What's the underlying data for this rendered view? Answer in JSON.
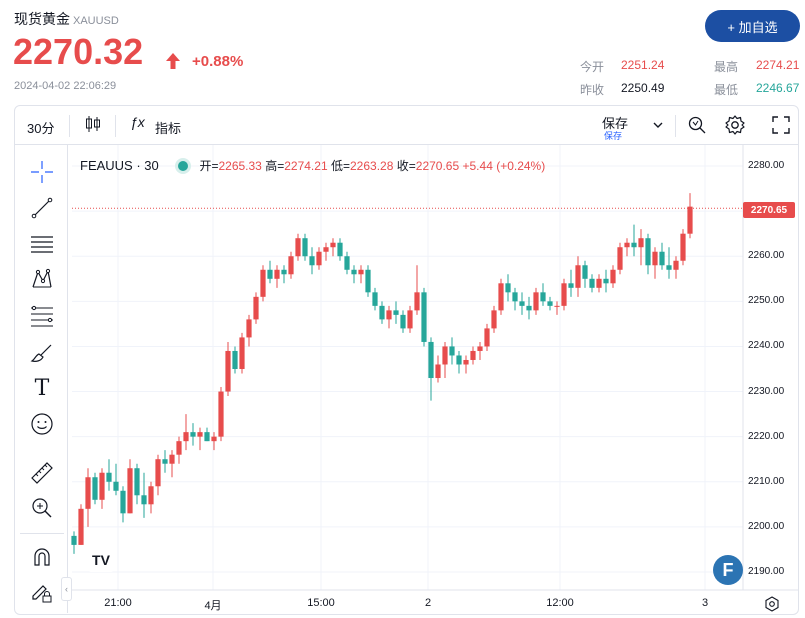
{
  "header": {
    "title": "现货黄金",
    "symbol": "XAUUSD",
    "price": "2270.32",
    "change_pct": "+0.88%",
    "timestamp": "2024-04-02 22:06:29",
    "add_button": "+ 加自选"
  },
  "stats": {
    "open_label": "今开",
    "open_value": "2251.24",
    "high_label": "最高",
    "high_value": "2274.21",
    "prev_label": "昨收",
    "prev_value": "2250.49",
    "low_label": "最低",
    "low_value": "2246.67"
  },
  "toolbar": {
    "interval": "30分",
    "indicators": "指标",
    "save_label": "保存",
    "save_sub": "保存"
  },
  "legend": {
    "symbol": "FEAUUS · 30",
    "open_label": "开",
    "open_value": "2265.33",
    "high_label": "高",
    "high_value": "2274.21",
    "low_label": "低",
    "low_value": "2263.28",
    "close_label": "收",
    "close_value": "2270.65",
    "change": "+5.44 (+0.24%)"
  },
  "colors": {
    "up": "#e74c4c",
    "down": "#26a69a",
    "accent": "#1c4fa3"
  },
  "icons": [
    "crosshair-icon",
    "trendline-icon",
    "horizontal-lines-icon",
    "pattern-icon",
    "fib-icon",
    "brush-icon",
    "text-icon",
    "emoji-icon",
    "ruler-icon",
    "zoom-icon",
    "magnet-icon",
    "lock-pencil-icon"
  ],
  "chart_data": {
    "type": "candlestick",
    "last_price_label": "2270.65",
    "ylim": [
      2186,
      2284
    ],
    "y_ticks": [
      "2280.00",
      "2270.00",
      "2260.00",
      "2250.00",
      "2240.00",
      "2230.00",
      "2220.00",
      "2210.00",
      "2200.00",
      "2190.00"
    ],
    "x_ticks": [
      "21:00",
      "4月",
      "15:00",
      "2",
      "12:00",
      "3"
    ],
    "candles": [
      [
        2198,
        2199,
        2194,
        2196
      ],
      [
        2196,
        2205,
        2196,
        2204
      ],
      [
        2204,
        2213,
        2200,
        2211
      ],
      [
        2211,
        2212,
        2205,
        2206
      ],
      [
        2206,
        2213,
        2204,
        2212
      ],
      [
        2212,
        2215,
        2208,
        2210
      ],
      [
        2210,
        2214,
        2207,
        2208
      ],
      [
        2208,
        2209,
        2201,
        2203
      ],
      [
        2203,
        2215,
        2203,
        2213
      ],
      [
        2213,
        2214,
        2205,
        2207
      ],
      [
        2207,
        2212,
        2202,
        2205
      ],
      [
        2205,
        2210,
        2203,
        2209
      ],
      [
        2209,
        2216,
        2207,
        2215
      ],
      [
        2215,
        2217,
        2212,
        2214
      ],
      [
        2214,
        2217,
        2211,
        2216
      ],
      [
        2216,
        2220,
        2214,
        2219
      ],
      [
        2219,
        2225,
        2217,
        2221
      ],
      [
        2221,
        2223,
        2218,
        2220
      ],
      [
        2220,
        2222,
        2217,
        2221
      ],
      [
        2221,
        2222,
        2219,
        2219
      ],
      [
        2219,
        2221,
        2217,
        2220
      ],
      [
        2220,
        2231,
        2219,
        2230
      ],
      [
        2230,
        2241,
        2229,
        2239
      ],
      [
        2239,
        2240,
        2234,
        2235
      ],
      [
        2235,
        2243,
        2234,
        2242
      ],
      [
        2242,
        2247,
        2240,
        2246
      ],
      [
        2246,
        2252,
        2245,
        2251
      ],
      [
        2251,
        2258,
        2250,
        2257
      ],
      [
        2257,
        2259,
        2254,
        2255
      ],
      [
        2255,
        2258,
        2253,
        2257
      ],
      [
        2257,
        2258,
        2254,
        2256
      ],
      [
        2256,
        2261,
        2255,
        2260
      ],
      [
        2260,
        2265,
        2259,
        2264
      ],
      [
        2264,
        2265,
        2259,
        2260
      ],
      [
        2260,
        2262,
        2256,
        2258
      ],
      [
        2258,
        2262,
        2257,
        2261
      ],
      [
        2261,
        2263,
        2259,
        2262
      ],
      [
        2262,
        2264,
        2260,
        2263
      ],
      [
        2263,
        2264,
        2259,
        2260
      ],
      [
        2260,
        2261,
        2256,
        2257
      ],
      [
        2257,
        2258,
        2254,
        2256
      ],
      [
        2256,
        2258,
        2254,
        2257
      ],
      [
        2257,
        2258,
        2251,
        2252
      ],
      [
        2252,
        2253,
        2248,
        2249
      ],
      [
        2249,
        2250,
        2245,
        2246
      ],
      [
        2246,
        2249,
        2244,
        2248
      ],
      [
        2248,
        2250,
        2245,
        2247
      ],
      [
        2247,
        2248,
        2243,
        2244
      ],
      [
        2244,
        2249,
        2243,
        2248
      ],
      [
        2248,
        2258,
        2247,
        2252
      ],
      [
        2252,
        2253,
        2240,
        2241
      ],
      [
        2241,
        2242,
        2228,
        2233
      ],
      [
        2233,
        2238,
        2232,
        2236
      ],
      [
        2236,
        2241,
        2233,
        2240
      ],
      [
        2240,
        2242,
        2236,
        2238
      ],
      [
        2238,
        2239,
        2234,
        2236
      ],
      [
        2236,
        2238,
        2234,
        2237
      ],
      [
        2237,
        2240,
        2236,
        2239
      ],
      [
        2239,
        2241,
        2237,
        2240
      ],
      [
        2240,
        2245,
        2239,
        2244
      ],
      [
        2244,
        2249,
        2243,
        2248
      ],
      [
        2248,
        2255,
        2247,
        2254
      ],
      [
        2254,
        2256,
        2250,
        2252
      ],
      [
        2252,
        2253,
        2248,
        2250
      ],
      [
        2250,
        2252,
        2247,
        2249
      ],
      [
        2249,
        2251,
        2246,
        2248
      ],
      [
        2248,
        2253,
        2247,
        2252
      ],
      [
        2252,
        2254,
        2249,
        2250
      ],
      [
        2250,
        2251,
        2248,
        2249
      ],
      [
        2249,
        2250,
        2247,
        2249
      ],
      [
        2249,
        2255,
        2248,
        2254
      ],
      [
        2254,
        2257,
        2251,
        2253
      ],
      [
        2253,
        2260,
        2251,
        2258
      ],
      [
        2258,
        2259,
        2253,
        2255
      ],
      [
        2255,
        2256,
        2252,
        2253
      ],
      [
        2253,
        2256,
        2252,
        2255
      ],
      [
        2255,
        2257,
        2252,
        2254
      ],
      [
        2254,
        2258,
        2253,
        2257
      ],
      [
        2257,
        2263,
        2256,
        2262
      ],
      [
        2262,
        2264,
        2260,
        2263
      ],
      [
        2263,
        2267,
        2260,
        2262
      ],
      [
        2262,
        2266,
        2258,
        2264
      ],
      [
        2264,
        2265,
        2256,
        2258
      ],
      [
        2258,
        2262,
        2255,
        2261
      ],
      [
        2261,
        2263,
        2257,
        2258
      ],
      [
        2258,
        2262,
        2255,
        2257
      ],
      [
        2257,
        2260,
        2255,
        2259
      ],
      [
        2259,
        2266,
        2258,
        2265
      ],
      [
        2265,
        2274,
        2264,
        2271
      ]
    ]
  }
}
